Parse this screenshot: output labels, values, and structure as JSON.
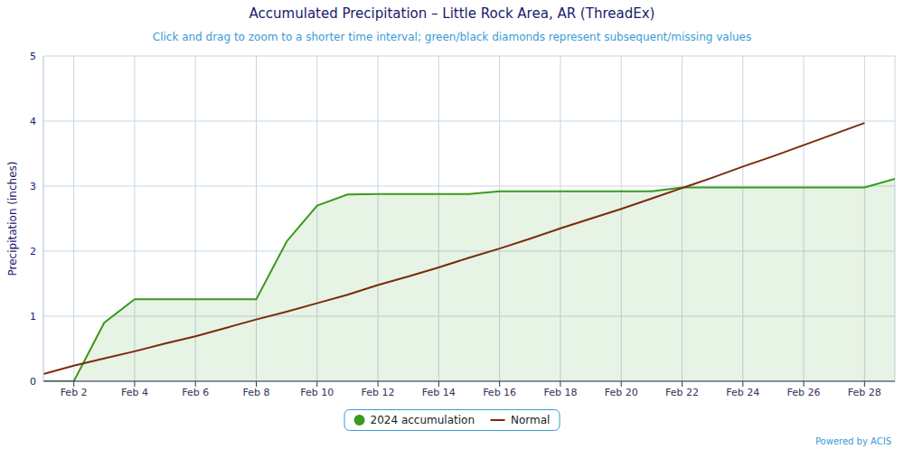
{
  "chart_data": {
    "type": "line",
    "title": "Accumulated Precipitation – Little Rock Area, AR (ThreadEx)",
    "subtitle": "Click and drag to zoom to a shorter time interval; green/black diamonds represent subsequent/missing values",
    "y_label": "Precipitation (inches)",
    "credit": "Powered by ACIS",
    "x": [
      1,
      2,
      3,
      4,
      5,
      6,
      7,
      8,
      9,
      10,
      11,
      12,
      13,
      14,
      15,
      16,
      17,
      18,
      19,
      20,
      21,
      22,
      23,
      24,
      25,
      26,
      27,
      28,
      29
    ],
    "series": [
      {
        "name": "2024 accumulation",
        "type": "area",
        "color": "#3a9a1e",
        "values": [
          0,
          0,
          0.9,
          1.26,
          1.26,
          1.26,
          1.26,
          1.26,
          2.15,
          2.7,
          2.87,
          2.88,
          2.88,
          2.88,
          2.88,
          2.92,
          2.92,
          2.92,
          2.92,
          2.92,
          2.92,
          2.98,
          2.98,
          2.98,
          2.98,
          2.98,
          2.98,
          2.98,
          3.11
        ]
      },
      {
        "name": "Normal",
        "type": "line",
        "color": "#7b2a0c",
        "values": [
          0.11,
          0.24,
          0.35,
          0.46,
          0.58,
          0.69,
          0.82,
          0.95,
          1.07,
          1.2,
          1.33,
          1.48,
          1.61,
          1.75,
          1.9,
          2.04,
          2.19,
          2.35,
          2.5,
          2.65,
          2.81,
          2.97,
          3.13,
          3.3,
          3.46,
          3.63,
          3.8,
          3.97,
          null
        ]
      }
    ],
    "xlim": [
      1,
      29
    ],
    "xticks": [
      {
        "value": 2,
        "label": "Feb 2"
      },
      {
        "value": 4,
        "label": "Feb 4"
      },
      {
        "value": 6,
        "label": "Feb 6"
      },
      {
        "value": 8,
        "label": "Feb 8"
      },
      {
        "value": 10,
        "label": "Feb 10"
      },
      {
        "value": 12,
        "label": "Feb 12"
      },
      {
        "value": 14,
        "label": "Feb 14"
      },
      {
        "value": 16,
        "label": "Feb 16"
      },
      {
        "value": 18,
        "label": "Feb 18"
      },
      {
        "value": 20,
        "label": "Feb 20"
      },
      {
        "value": 22,
        "label": "Feb 22"
      },
      {
        "value": 24,
        "label": "Feb 24"
      },
      {
        "value": 26,
        "label": "Feb 26"
      },
      {
        "value": 28,
        "label": "Feb 28"
      }
    ],
    "ylim": [
      0,
      5
    ],
    "yticks": [
      0,
      1,
      2,
      3,
      4,
      5
    ],
    "grid": true,
    "legend": "bottom"
  }
}
